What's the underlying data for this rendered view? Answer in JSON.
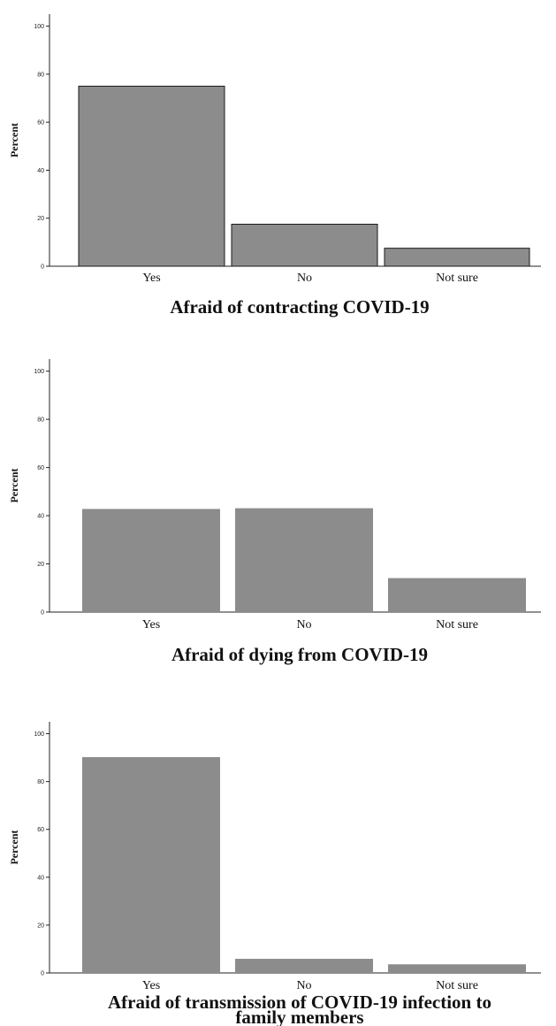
{
  "chart_data": [
    {
      "type": "bar",
      "title_lines": [
        "Afraid of contracting COVID-19"
      ],
      "xlabel": "",
      "ylabel": "Percent",
      "categories": [
        "Yes",
        "No",
        "Not sure"
      ],
      "values": [
        75,
        17.5,
        7.5
      ],
      "ylim": [
        0,
        105
      ],
      "yticks": [
        "0",
        "20",
        "40",
        "60",
        "80",
        "100"
      ],
      "grid": false,
      "bar_color": "#8c8c8c",
      "bar_outline": true
    },
    {
      "type": "bar",
      "title_lines": [
        "Afraid of dying from COVID-19"
      ],
      "xlabel": "",
      "ylabel": "Percent",
      "categories": [
        "Yes",
        "No",
        "Not sure"
      ],
      "values": [
        42.8,
        43.1,
        14.1
      ],
      "ylim": [
        0,
        105
      ],
      "yticks": [
        "0",
        "20",
        "40",
        "60",
        "80",
        "100"
      ],
      "grid": false,
      "bar_color": "#8c8c8c",
      "bar_outline": false
    },
    {
      "type": "bar",
      "title_lines": [
        "Afraid of transmission of COVID-19 infection to",
        "family members"
      ],
      "xlabel": "",
      "ylabel": "Percent",
      "categories": [
        "Yes",
        "No",
        "Not sure"
      ],
      "values": [
        90.2,
        5.9,
        3.6
      ],
      "ylim": [
        0,
        105
      ],
      "yticks": [
        "0",
        "20",
        "40",
        "60",
        "80",
        "100"
      ],
      "grid": false,
      "bar_color": "#8c8c8c",
      "bar_outline": false
    }
  ]
}
